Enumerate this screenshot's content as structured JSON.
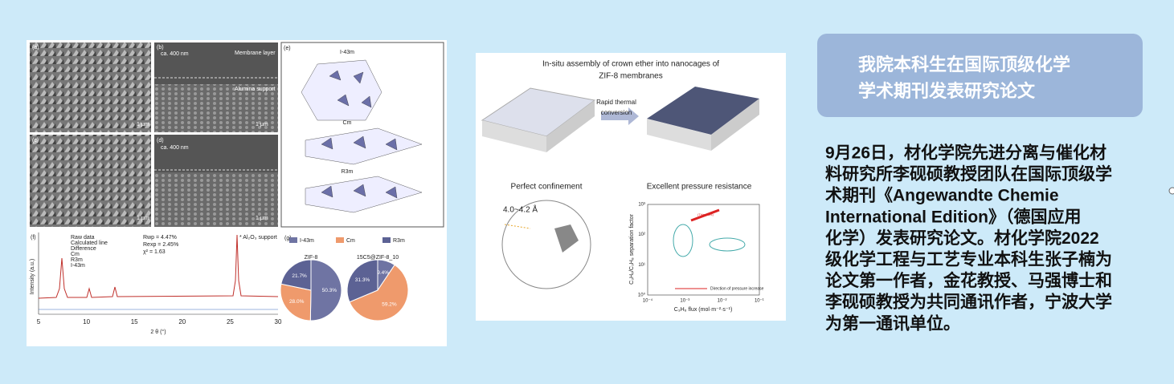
{
  "figure_left": {
    "panels": [
      "(a)",
      "(b)",
      "(c)",
      "(d)",
      "(e)",
      "(f)",
      "(g)"
    ],
    "scale_bar": "1 μm",
    "thickness": "ca. 400 nm",
    "membrane_layer": "Membrane layer",
    "support": "Alumina support",
    "phases": [
      "I-43m",
      "Cm",
      "R3m"
    ],
    "xrd": {
      "legend": [
        "Raw data",
        "Calculated line",
        "Difference",
        "Cm",
        "R3m",
        "I-43m"
      ],
      "stats": [
        "Rwp = 4.47%",
        "Rexp = 2.45%",
        "χ² = 1.63"
      ],
      "support_label": "* Al₂O₃ support",
      "ylabel": "Intensity (a.u.)",
      "xlabel": "2 θ (°)",
      "xticks": [
        "5",
        "10",
        "15",
        "20",
        "25",
        "30"
      ]
    },
    "pies": {
      "series": [
        {
          "name": "I-43m",
          "color": "#6f74a3"
        },
        {
          "name": "Cm",
          "color": "#ef9a6c"
        },
        {
          "name": "R3m",
          "color": "#5c6294"
        }
      ],
      "charts": [
        {
          "title": "ZIF-8",
          "values": [
            50.3,
            28.0,
            21.7
          ],
          "value_labels": [
            "50.3%",
            "28.0%",
            "21.7%"
          ]
        },
        {
          "title": "15C5@ZIF-8_10",
          "values": [
            9.4,
            59.2,
            31.3
          ],
          "value_labels": [
            "9.4%",
            "59.2%",
            "31.3%"
          ]
        }
      ]
    }
  },
  "figure_right": {
    "title": [
      "In-situ assembly of crown ether into nanocages of",
      "ZIF-8 membranes"
    ],
    "arrow_label": [
      "Rapid thermal",
      "conversion"
    ],
    "left_caption": "Perfect confinement",
    "right_caption": "Excellent pressure resistance",
    "pore_size": "4.0~4.2 Å",
    "plot": {
      "ylabel": "C₃H₆/C₃H₈ separation factor",
      "xlabel": "C₃H₆ flux (mol·m⁻²·s⁻¹)",
      "yticks": [
        "10⁰",
        "10¹",
        "10²",
        "10³"
      ],
      "xticks": [
        "10⁻⁴",
        "10⁻³",
        "10⁻²",
        "10⁻¹"
      ],
      "arrow": "Direction of pressure increase",
      "this_work": "(This work)"
    }
  },
  "banner": {
    "title": [
      "我院本科生在国际顶级化学",
      "学术期刊发表研究论文"
    ]
  },
  "article": {
    "lines": [
      "9月26日，材化学院先进分离与催化材",
      "料研究所李砚硕教授团队在国际顶级学",
      "术期刊《Angewandte Chemie",
      "International Edition》（德国应用",
      "化学）发表研究论文。材化学院2022",
      "级化学工程与工艺专业本科生张子楠为",
      "论文第一作者，金花教授、马强博士和",
      "李砚硕教授为共同通讯作者，宁波大学",
      "为第一通讯单位。"
    ]
  }
}
